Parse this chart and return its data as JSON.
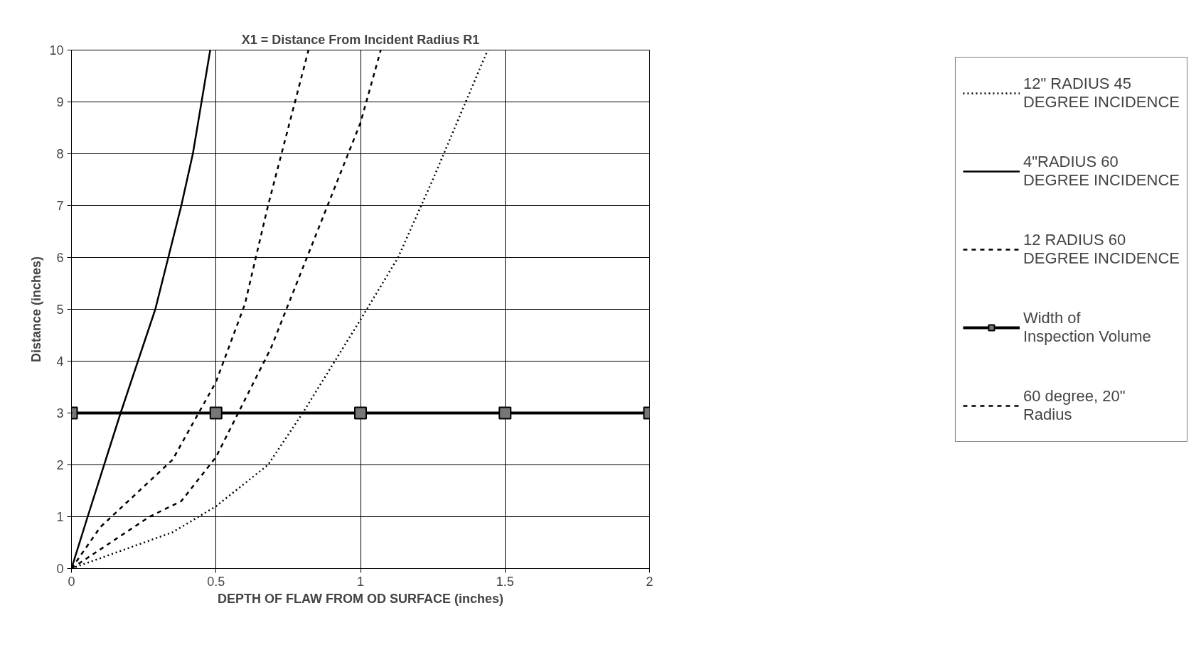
{
  "chart_data": {
    "type": "line",
    "title": "X1 = Distance From Incident Radius R1",
    "xlabel": "DEPTH OF FLAW FROM OD SURFACE (inches)",
    "ylabel": "Distance (inches)",
    "xlim": [
      0,
      2
    ],
    "ylim": [
      0,
      10
    ],
    "xticks": [
      0,
      0.5,
      1,
      1.5,
      2
    ],
    "yticks": [
      0,
      1,
      2,
      3,
      4,
      5,
      6,
      7,
      8,
      9,
      10
    ],
    "grid": true,
    "legend": "right",
    "series": [
      {
        "name": "12\" RADIUS 45 DEGREE INCIDENCE",
        "color": "#000000",
        "line_style": "dotted",
        "marker": "none",
        "x": [
          0,
          0.1,
          0.35,
          0.5,
          0.68,
          0.8,
          1.0,
          1.13,
          1.25,
          1.44
        ],
        "values": [
          0,
          0.2,
          0.7,
          1.2,
          2.0,
          3.0,
          4.8,
          6.0,
          7.5,
          10
        ]
      },
      {
        "name": "4\"RADIUS 60 DEGREE INCIDENCE",
        "color": "#000000",
        "line_style": "solid",
        "marker": "none",
        "x": [
          0,
          0.056,
          0.17,
          0.29,
          0.38,
          0.42,
          0.48
        ],
        "values": [
          0,
          1,
          3,
          5,
          7,
          8,
          10
        ]
      },
      {
        "name": "12 RADIUS 60 DEGREE INCIDENCE",
        "color": "#000000",
        "line_style": "dashed",
        "marker": "none",
        "x": [
          0,
          0.1,
          0.35,
          0.5,
          0.6,
          0.68,
          0.82
        ],
        "values": [
          0,
          0.8,
          2.1,
          3.6,
          5.1,
          7.0,
          10
        ]
      },
      {
        "name": "Width of Inspection Volume",
        "color": "#000000",
        "line_style": "solid",
        "marker": "square",
        "x": [
          0,
          0.5,
          1,
          1.5,
          2
        ],
        "values": [
          3,
          3,
          3,
          3,
          3
        ]
      },
      {
        "name": "60 degree, 20\" Radius",
        "color": "#000000",
        "line_style": "dashed",
        "marker": "none",
        "x": [
          0,
          0.27,
          0.38,
          0.5,
          0.69,
          1.0,
          1.07
        ],
        "values": [
          0,
          1.0,
          1.3,
          2.15,
          4.25,
          8.6,
          10
        ]
      }
    ]
  }
}
